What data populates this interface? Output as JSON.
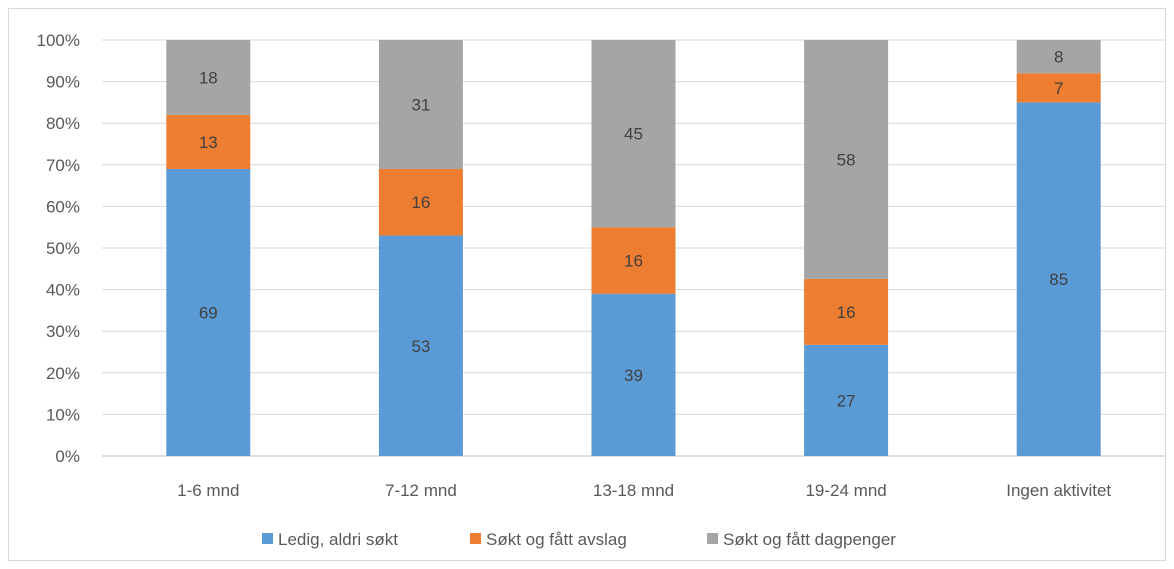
{
  "chart_data": {
    "type": "bar",
    "stacked": true,
    "percent_stacked": true,
    "categories": [
      "1-6 mnd",
      "7-12 mnd",
      "13-18 mnd",
      "19-24 mnd",
      "Ingen aktivitet"
    ],
    "series": [
      {
        "name": "Ledig, aldri søkt",
        "color": "#5b9bd5",
        "values": [
          69,
          53,
          39,
          27,
          85
        ]
      },
      {
        "name": "Søkt og fått avslag",
        "color": "#ed7d31",
        "values": [
          13,
          16,
          16,
          16,
          7
        ]
      },
      {
        "name": "Søkt og fått dagpenger",
        "color": "#a5a5a5",
        "values": [
          18,
          31,
          45,
          58,
          8
        ]
      }
    ],
    "y_ticks": [
      "0%",
      "10%",
      "20%",
      "30%",
      "40%",
      "50%",
      "60%",
      "70%",
      "80%",
      "90%",
      "100%"
    ],
    "ylim": [
      0,
      100
    ],
    "grid": true,
    "legend_position": "bottom",
    "title": "",
    "xlabel": "",
    "ylabel": ""
  }
}
